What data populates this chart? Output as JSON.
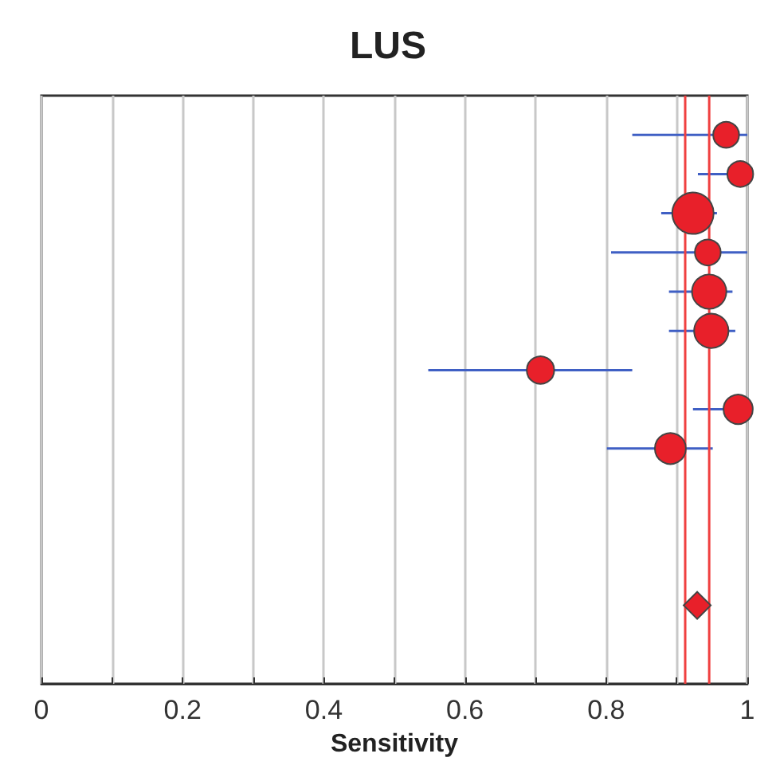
{
  "chart_data": {
    "type": "bubble",
    "orientation": "horizontal",
    "title": "LUS",
    "xlabel": "Sensitivity",
    "categories": [
      null,
      null,
      null,
      null,
      null,
      null,
      null,
      null,
      null,
      null,
      null,
      null,
      null,
      null,
      null,
      null
    ],
    "series": [
      {
        "type": "bubble",
        "color": "#e8202a",
        "values": [
          null,
          0.97,
          0.99,
          0.923,
          0.944,
          0.946,
          0.949,
          0.707,
          0.987,
          0.891,
          null,
          null,
          null,
          null,
          null,
          null
        ],
        "sizes": [
          null,
          0.39,
          0.39,
          1,
          0.39,
          0.69,
          0.69,
          0.44,
          0.5,
          0.56,
          null,
          null,
          null,
          null,
          null,
          null
        ],
        "errors": [
          null,
          [
            0.837,
            1.0
          ],
          [
            0.93,
            1.0
          ],
          [
            0.878,
            0.957
          ],
          [
            0.807,
            1.0
          ],
          [
            0.889,
            0.979
          ],
          [
            0.889,
            0.983
          ],
          [
            0.548,
            0.837
          ],
          [
            0.923,
            1.0
          ],
          [
            0.801,
            0.951
          ],
          null,
          null,
          null,
          null,
          null,
          null
        ]
      },
      {
        "type": "scatter",
        "marker": "diamond",
        "color": "#e8202a",
        "values": [
          null,
          null,
          null,
          null,
          null,
          null,
          null,
          null,
          null,
          null,
          null,
          null,
          null,
          0.929,
          null,
          null
        ]
      }
    ],
    "ref_lines": [
      {
        "axis": "x",
        "value": 0.912,
        "color": "#f04040"
      },
      {
        "axis": "x",
        "value": 0.946,
        "color": "#f04040"
      }
    ],
    "xlim": [
      0,
      1
    ],
    "xticks": [
      0,
      {
        "value": 0.1,
        "label": null
      },
      0.2,
      {
        "value": 0.3,
        "label": null
      },
      0.4,
      {
        "value": 0.5,
        "label": null
      },
      0.6,
      {
        "value": 0.7,
        "label": null
      },
      0.8,
      {
        "value": 0.9,
        "label": null
      },
      1
    ],
    "grid": "x",
    "tick_labels": "x"
  }
}
